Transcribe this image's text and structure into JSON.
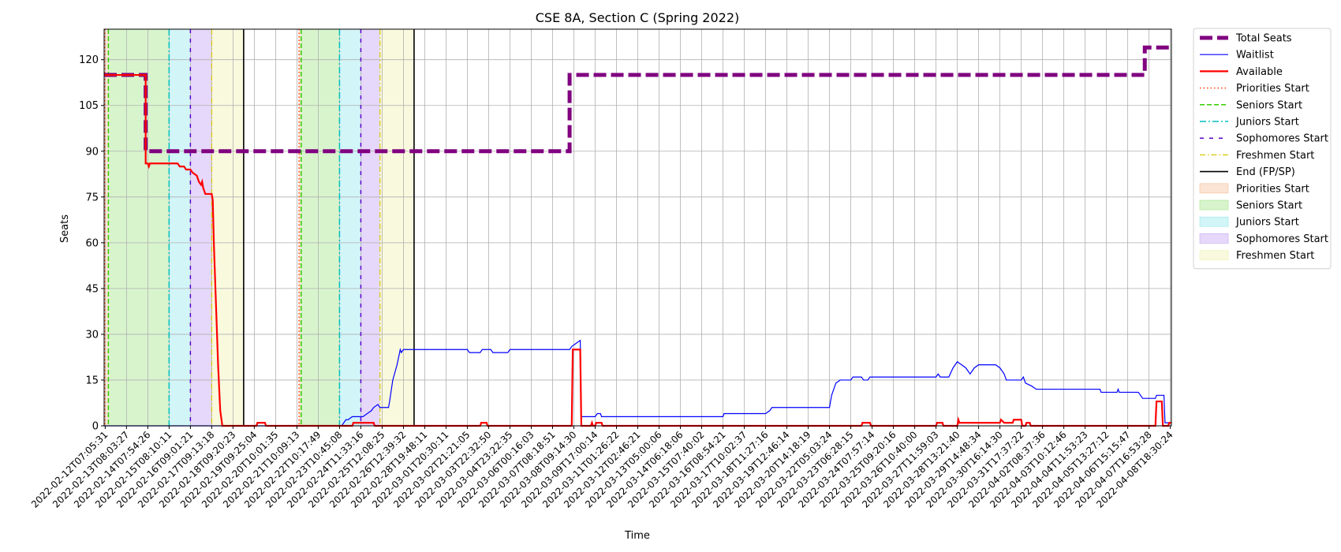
{
  "chart_data": {
    "type": "line",
    "title": "CSE 8A, Section C (Spring 2022)",
    "xlabel": "Time",
    "ylabel": "Seats",
    "ylim": [
      0,
      130
    ],
    "yticks": [
      0,
      15,
      30,
      45,
      60,
      75,
      90,
      105,
      120
    ],
    "grid": true,
    "legend_position": "outside-right",
    "x_tick_labels": [
      "2022-02-12T07:05:31",
      "2022-02-13T08:03:27",
      "2022-02-14T07:54:26",
      "2022-02-15T08:10:11",
      "2022-02-16T09:01:21",
      "2022-02-17T09:13:18",
      "2022-02-18T09:20:23",
      "2022-02-19T09:25:04",
      "2022-02-20T10:01:35",
      "2022-02-21T10:09:13",
      "2022-02-22T10:17:49",
      "2022-02-23T10:45:08",
      "2022-02-24T11:33:16",
      "2022-02-25T12:08:25",
      "2022-02-26T12:39:32",
      "2022-02-28T19:48:11",
      "2022-03-01T20:30:11",
      "2022-03-02T21:21:05",
      "2022-03-03T22:32:50",
      "2022-03-04T23:22:35",
      "2022-03-06T00:16:03",
      "2022-03-07T08:18:51",
      "2022-03-08T09:14:30",
      "2022-03-09T17:00:14",
      "2022-03-11T01:26:22",
      "2022-03-12T02:46:21",
      "2022-03-13T05:00:06",
      "2022-03-14T06:18:06",
      "2022-03-15T07:40:02",
      "2022-03-16T08:54:21",
      "2022-03-17T10:02:37",
      "2022-03-18T11:27:16",
      "2022-03-19T12:46:14",
      "2022-03-20T14:18:19",
      "2022-03-22T05:03:24",
      "2022-03-23T06:28:15",
      "2022-03-24T07:57:14",
      "2022-03-25T09:20:16",
      "2022-03-26T10:40:00",
      "2022-03-27T11:59:03",
      "2022-03-28T13:21:40",
      "2022-03-29T14:48:34",
      "2022-03-30T16:14:30",
      "2022-03-31T17:37:22",
      "2022-04-02T08:37:36",
      "2022-04-03T10:12:46",
      "2022-04-04T11:53:23",
      "2022-04-05T13:27:12",
      "2022-04-06T15:15:47",
      "2022-04-07T16:53:28",
      "2022-04-08T18:30:24"
    ],
    "x_index_range": [
      -0.05,
      50.05
    ],
    "series": [
      {
        "name": "Total Seats",
        "color": "#800080",
        "style": "dashed-thick",
        "points": [
          [
            -0.05,
            115
          ],
          [
            1.9,
            115
          ],
          [
            1.9,
            90
          ],
          [
            21.8,
            90
          ],
          [
            21.8,
            115
          ],
          [
            48.8,
            115
          ],
          [
            48.8,
            124
          ],
          [
            50.05,
            124
          ]
        ]
      },
      {
        "name": "Waitlist",
        "color": "#0000ff",
        "style": "solid-thin",
        "points": [
          [
            -0.05,
            0
          ],
          [
            11.1,
            0
          ],
          [
            11.2,
            1
          ],
          [
            11.3,
            2
          ],
          [
            11.4,
            2
          ],
          [
            11.6,
            3
          ],
          [
            12.1,
            3
          ],
          [
            12.3,
            4
          ],
          [
            12.5,
            5
          ],
          [
            12.6,
            6
          ],
          [
            12.8,
            7
          ],
          [
            12.9,
            6
          ],
          [
            13.3,
            6
          ],
          [
            13.35,
            8
          ],
          [
            13.5,
            15
          ],
          [
            13.7,
            20
          ],
          [
            13.85,
            25
          ],
          [
            13.9,
            24
          ],
          [
            14.0,
            25
          ],
          [
            17.0,
            25
          ],
          [
            17.1,
            24
          ],
          [
            17.6,
            24
          ],
          [
            17.7,
            25
          ],
          [
            18.1,
            25
          ],
          [
            18.2,
            24
          ],
          [
            18.9,
            24
          ],
          [
            19.0,
            25
          ],
          [
            21.8,
            25
          ],
          [
            21.9,
            26
          ],
          [
            22.1,
            27
          ],
          [
            22.3,
            28
          ],
          [
            22.35,
            3
          ],
          [
            23.0,
            3
          ],
          [
            23.1,
            4
          ],
          [
            23.25,
            4
          ],
          [
            23.3,
            3
          ],
          [
            29.0,
            3
          ],
          [
            29.05,
            4
          ],
          [
            31.0,
            4
          ],
          [
            31.2,
            5
          ],
          [
            31.3,
            6
          ],
          [
            34.0,
            6
          ],
          [
            34.1,
            10
          ],
          [
            34.3,
            14
          ],
          [
            34.5,
            15
          ],
          [
            35.0,
            15
          ],
          [
            35.1,
            16
          ],
          [
            35.5,
            16
          ],
          [
            35.6,
            15
          ],
          [
            35.8,
            15
          ],
          [
            35.9,
            16
          ],
          [
            39.0,
            16
          ],
          [
            39.1,
            17
          ],
          [
            39.2,
            16
          ],
          [
            39.6,
            16
          ],
          [
            39.8,
            19
          ],
          [
            40.0,
            21
          ],
          [
            40.2,
            20
          ],
          [
            40.4,
            19
          ],
          [
            40.5,
            18
          ],
          [
            40.6,
            17
          ],
          [
            40.7,
            18
          ],
          [
            40.8,
            19
          ],
          [
            41.0,
            20
          ],
          [
            41.8,
            20
          ],
          [
            42.0,
            19
          ],
          [
            42.2,
            17
          ],
          [
            42.3,
            15
          ],
          [
            43.0,
            15
          ],
          [
            43.1,
            16
          ],
          [
            43.2,
            14
          ],
          [
            43.5,
            13
          ],
          [
            43.7,
            12
          ],
          [
            46.7,
            12
          ],
          [
            46.75,
            11
          ],
          [
            47.5,
            11
          ],
          [
            47.55,
            12
          ],
          [
            47.6,
            11
          ],
          [
            48.5,
            11
          ],
          [
            48.6,
            10
          ],
          [
            48.7,
            9
          ],
          [
            49.3,
            9
          ],
          [
            49.35,
            10
          ],
          [
            49.7,
            10
          ],
          [
            49.75,
            1
          ],
          [
            50.05,
            1
          ]
        ]
      },
      {
        "name": "Available",
        "color": "#ff0000",
        "style": "solid-thick",
        "points": [
          [
            -0.05,
            115
          ],
          [
            1.9,
            115
          ],
          [
            1.9,
            86
          ],
          [
            2.0,
            86
          ],
          [
            2.05,
            85
          ],
          [
            2.1,
            86
          ],
          [
            3.4,
            86
          ],
          [
            3.5,
            85
          ],
          [
            3.7,
            85
          ],
          [
            3.8,
            84
          ],
          [
            4.0,
            84
          ],
          [
            4.1,
            83
          ],
          [
            4.3,
            82
          ],
          [
            4.4,
            80
          ],
          [
            4.5,
            79
          ],
          [
            4.55,
            80
          ],
          [
            4.6,
            78
          ],
          [
            4.7,
            76
          ],
          [
            5.0,
            76
          ],
          [
            5.05,
            74
          ],
          [
            5.1,
            60
          ],
          [
            5.2,
            40
          ],
          [
            5.3,
            20
          ],
          [
            5.4,
            5
          ],
          [
            5.5,
            0
          ],
          [
            7.1,
            0
          ],
          [
            7.15,
            1
          ],
          [
            7.5,
            1
          ],
          [
            7.55,
            0
          ],
          [
            11.6,
            0
          ],
          [
            11.65,
            1
          ],
          [
            12.6,
            1
          ],
          [
            12.65,
            0
          ],
          [
            17.6,
            0
          ],
          [
            17.65,
            1
          ],
          [
            17.9,
            1
          ],
          [
            17.95,
            0
          ],
          [
            21.9,
            0
          ],
          [
            21.95,
            25
          ],
          [
            22.3,
            25
          ],
          [
            22.35,
            0
          ],
          [
            22.8,
            0
          ],
          [
            22.85,
            1
          ],
          [
            22.9,
            0
          ],
          [
            23.0,
            0
          ],
          [
            23.05,
            1
          ],
          [
            23.3,
            1
          ],
          [
            23.35,
            0
          ],
          [
            35.5,
            0
          ],
          [
            35.55,
            1
          ],
          [
            35.9,
            1
          ],
          [
            35.95,
            0
          ],
          [
            39.0,
            0
          ],
          [
            39.05,
            1
          ],
          [
            39.3,
            1
          ],
          [
            39.35,
            0
          ],
          [
            40.0,
            0
          ],
          [
            40.05,
            2
          ],
          [
            40.1,
            1
          ],
          [
            42.0,
            1
          ],
          [
            42.05,
            2
          ],
          [
            42.2,
            1
          ],
          [
            42.6,
            1
          ],
          [
            42.65,
            2
          ],
          [
            43.0,
            2
          ],
          [
            43.05,
            0
          ],
          [
            43.2,
            0
          ],
          [
            43.25,
            1
          ],
          [
            43.4,
            1
          ],
          [
            43.45,
            0
          ],
          [
            49.3,
            0
          ],
          [
            49.35,
            8
          ],
          [
            49.6,
            8
          ],
          [
            49.65,
            0
          ],
          [
            49.9,
            0
          ],
          [
            49.95,
            1
          ],
          [
            50.05,
            1
          ]
        ]
      }
    ],
    "milestone_lines": [
      {
        "name": "Priorities Start",
        "color": "#ff4500",
        "style": "dotted",
        "x": [
          -0.02,
          9.1
        ]
      },
      {
        "name": "Seniors Start",
        "color": "#33cc00",
        "style": "dashed",
        "x": [
          0.15,
          9.2
        ]
      },
      {
        "name": "Juniors Start",
        "color": "#00bfbf",
        "style": "dash-dot",
        "x": [
          3.0,
          11.0
        ]
      },
      {
        "name": "Sophomores Start",
        "color": "#5c00cc",
        "style": "loose-dashed",
        "x": [
          4.0,
          12.0
        ]
      },
      {
        "name": "Freshmen Start",
        "color": "#d4c800",
        "style": "dash-dot-thin",
        "x": [
          5.0,
          12.9
        ]
      },
      {
        "name": "End (FP/SP)",
        "color": "#000000",
        "style": "solid",
        "x": [
          6.5,
          14.5
        ]
      }
    ],
    "shaded_periods": [
      {
        "name": "Priorities Start",
        "color": "#f4b183",
        "ranges": [
          [
            -0.02,
            0.15
          ],
          [
            9.1,
            9.2
          ]
        ]
      },
      {
        "name": "Seniors Start",
        "color": "#90e070",
        "ranges": [
          [
            0.15,
            3.0
          ],
          [
            9.2,
            11.0
          ]
        ]
      },
      {
        "name": "Juniors Start",
        "color": "#7fe3ea",
        "ranges": [
          [
            3.0,
            4.0
          ],
          [
            11.0,
            12.0
          ]
        ]
      },
      {
        "name": "Sophomores Start",
        "color": "#b78ff0",
        "ranges": [
          [
            4.0,
            5.0
          ],
          [
            12.0,
            12.9
          ]
        ]
      },
      {
        "name": "Freshmen Start",
        "color": "#eeeea0",
        "ranges": [
          [
            5.0,
            6.5
          ],
          [
            12.9,
            14.5
          ]
        ]
      }
    ],
    "legend": [
      {
        "label": "Total Seats",
        "kind": "line",
        "color": "#800080",
        "style": "dashed-thick"
      },
      {
        "label": "Waitlist",
        "kind": "line",
        "color": "#0000ff",
        "style": "solid-thin"
      },
      {
        "label": "Available",
        "kind": "line",
        "color": "#ff0000",
        "style": "solid-thick"
      },
      {
        "label": "Priorities Start",
        "kind": "line",
        "color": "#ff4500",
        "style": "dotted"
      },
      {
        "label": "Seniors Start",
        "kind": "line",
        "color": "#33cc00",
        "style": "dashed"
      },
      {
        "label": "Juniors Start",
        "kind": "line",
        "color": "#00bfbf",
        "style": "dash-dot"
      },
      {
        "label": "Sophomores Start",
        "kind": "line",
        "color": "#5c00cc",
        "style": "loose-dashed"
      },
      {
        "label": "Freshmen Start",
        "kind": "line",
        "color": "#d4c800",
        "style": "dash-dot-thin"
      },
      {
        "label": "End (FP/SP)",
        "kind": "line",
        "color": "#000000",
        "style": "solid"
      },
      {
        "label": "Priorities Start",
        "kind": "patch",
        "color": "#f4b183"
      },
      {
        "label": "Seniors Start",
        "kind": "patch",
        "color": "#90e070"
      },
      {
        "label": "Juniors Start",
        "kind": "patch",
        "color": "#7fe3ea"
      },
      {
        "label": "Sophomores Start",
        "kind": "patch",
        "color": "#b78ff0"
      },
      {
        "label": "Freshmen Start",
        "kind": "patch",
        "color": "#eeeea0"
      }
    ]
  }
}
